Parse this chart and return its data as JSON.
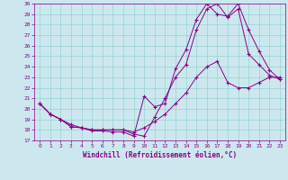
{
  "xlabel": "Windchill (Refroidissement éolien,°C)",
  "background_color": "#cce8ee",
  "line_color": "#880088",
  "xlim": [
    -0.5,
    23.5
  ],
  "ylim": [
    17,
    30
  ],
  "xticks": [
    0,
    1,
    2,
    3,
    4,
    5,
    6,
    7,
    8,
    9,
    10,
    11,
    12,
    13,
    14,
    15,
    16,
    17,
    18,
    19,
    20,
    21,
    22,
    23
  ],
  "yticks": [
    17,
    18,
    19,
    20,
    21,
    22,
    23,
    24,
    25,
    26,
    27,
    28,
    29,
    30
  ],
  "line1_x": [
    0,
    1,
    2,
    3,
    4,
    5,
    6,
    7,
    8,
    9,
    10,
    11,
    12,
    13,
    14,
    15,
    16,
    17,
    18,
    19,
    20,
    21,
    22,
    23
  ],
  "line1_y": [
    20.5,
    19.5,
    19.0,
    18.3,
    18.2,
    17.9,
    17.9,
    17.8,
    17.8,
    17.4,
    21.2,
    20.2,
    20.5,
    23.8,
    25.6,
    28.5,
    30.0,
    29.0,
    28.8,
    30.0,
    27.5,
    25.5,
    23.7,
    22.8
  ],
  "line2_x": [
    0,
    1,
    2,
    3,
    4,
    5,
    6,
    7,
    8,
    9,
    10,
    11,
    12,
    13,
    14,
    15,
    16,
    17,
    18,
    19,
    20,
    21,
    22,
    23
  ],
  "line2_y": [
    20.5,
    19.5,
    19.0,
    18.3,
    18.2,
    18.0,
    18.0,
    18.0,
    18.0,
    17.6,
    17.4,
    19.2,
    21.0,
    23.0,
    24.2,
    27.5,
    29.5,
    30.0,
    28.7,
    29.5,
    25.2,
    24.2,
    23.2,
    22.8
  ],
  "line3_x": [
    0,
    1,
    2,
    3,
    4,
    5,
    6,
    7,
    8,
    9,
    10,
    11,
    12,
    13,
    14,
    15,
    16,
    17,
    18,
    19,
    20,
    21,
    22,
    23
  ],
  "line3_y": [
    20.5,
    19.5,
    19.0,
    18.5,
    18.2,
    18.0,
    18.0,
    18.0,
    18.0,
    17.8,
    18.2,
    18.8,
    19.5,
    20.5,
    21.5,
    23.0,
    24.0,
    24.5,
    22.5,
    22.0,
    22.0,
    22.5,
    23.0,
    23.0
  ]
}
